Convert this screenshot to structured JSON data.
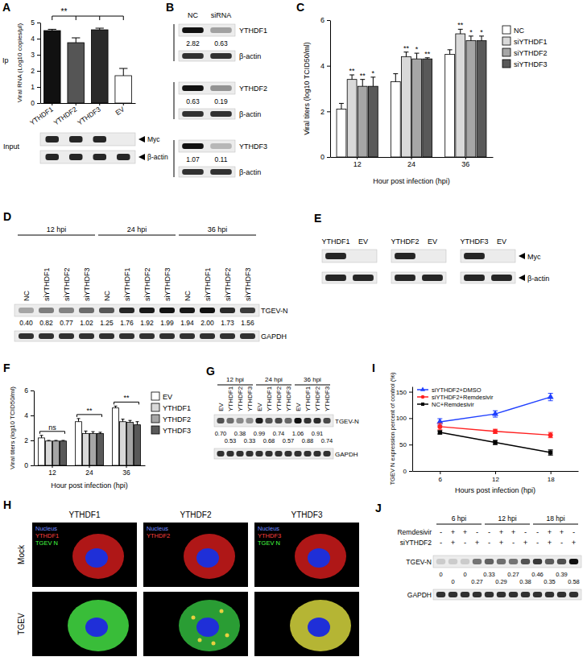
{
  "chart_data": [
    {
      "panel": "A",
      "type": "bar",
      "row_label": "Ip",
      "y_label": "Viral RNA (Log10 copies/μl)",
      "categories": [
        "YTHDF1",
        "YTHDF2",
        "YTHDF3",
        "EV"
      ],
      "values": [
        4.5,
        3.75,
        4.55,
        1.7
      ],
      "errors": [
        0.08,
        0.3,
        0.1,
        0.45
      ],
      "colors": [
        "#111111",
        "#555555",
        "#2a2a2a",
        "#ffffff"
      ],
      "ylim": [
        0,
        5
      ],
      "yticks": [
        0,
        1,
        2,
        3,
        4,
        5
      ],
      "annotations": [
        "**"
      ]
    },
    {
      "panel": "C",
      "type": "bar",
      "y_label": "Viral titers (log10 TCID50/ml)",
      "x_label": "Hour post infection (hpi)",
      "categories": [
        "12",
        "24",
        "36"
      ],
      "series": [
        {
          "name": "NC",
          "color": "#ffffff",
          "values": [
            2.1,
            3.3,
            4.5
          ],
          "errors": [
            0.25,
            0.35,
            0.2
          ]
        },
        {
          "name": "siYTHDF1",
          "color": "#d9d9d9",
          "values": [
            3.4,
            4.4,
            5.4
          ],
          "errors": [
            0.2,
            0.2,
            0.2
          ],
          "significance": [
            "**",
            "**",
            "**"
          ]
        },
        {
          "name": "siYTHDF2",
          "color": "#a6a6a6",
          "values": [
            3.1,
            4.3,
            5.1
          ],
          "errors": [
            0.3,
            0.25,
            0.2
          ],
          "significance": [
            "**",
            "*",
            "*"
          ]
        },
        {
          "name": "siYTHDF3",
          "color": "#595959",
          "values": [
            3.1,
            4.3,
            5.1
          ],
          "errors": [
            0.4,
            0.05,
            0.2
          ],
          "significance": [
            "*",
            "**",
            "*"
          ]
        }
      ],
      "ylim": [
        0,
        6
      ],
      "yticks": [
        0,
        2,
        4,
        6
      ],
      "legend": "right"
    },
    {
      "panel": "F",
      "type": "bar",
      "y_label": "Viral titers (log10 TCID50/ml)",
      "x_label": "Hour post infection (hpi)",
      "categories": [
        "12",
        "24",
        "36"
      ],
      "series": [
        {
          "name": "EV",
          "color": "#ffffff",
          "values": [
            2.2,
            3.5,
            4.6
          ],
          "errors": [
            0.2,
            0.25,
            0.15
          ]
        },
        {
          "name": "YTHDF1",
          "color": "#d9d9d9",
          "values": [
            1.95,
            2.55,
            3.5
          ],
          "errors": [
            0.05,
            0.2,
            0.2
          ]
        },
        {
          "name": "YTHDF2",
          "color": "#a6a6a6",
          "values": [
            1.95,
            2.55,
            3.45
          ],
          "errors": [
            0.05,
            0.15,
            0.15
          ]
        },
        {
          "name": "YTHDF3",
          "color": "#595959",
          "values": [
            1.95,
            2.55,
            3.25
          ],
          "errors": [
            0.05,
            0.1,
            0.25
          ]
        }
      ],
      "ylim": [
        0,
        6
      ],
      "yticks": [
        0,
        2,
        4,
        6
      ],
      "annotations": [
        "ns",
        "**",
        "**"
      ],
      "legend": "right"
    },
    {
      "panel": "I",
      "type": "line",
      "y_label": "TGEV N expression percent of control (%)",
      "x_label": "Hours post infection (hpi)",
      "x": [
        6,
        12,
        18
      ],
      "series": [
        {
          "name": "siYTHDF2+DMSO",
          "color": "#1f3fff",
          "marker": "triangle",
          "values": [
            93,
            108,
            140
          ],
          "errors": [
            6,
            6,
            7
          ]
        },
        {
          "name": "siYTHDF2+Remdesivir",
          "color": "#ff2020",
          "marker": "circle",
          "values": [
            84,
            75,
            68
          ],
          "errors": [
            6,
            4,
            5
          ]
        },
        {
          "name": "NC+Remdesivir",
          "color": "#000000",
          "marker": "square",
          "values": [
            73,
            54,
            35
          ],
          "errors": [
            3,
            4,
            5
          ]
        }
      ],
      "xlim": [
        3,
        21
      ],
      "xticks": [
        6,
        12,
        18
      ],
      "ylim": [
        0,
        160
      ],
      "yticks": [
        0,
        50,
        100,
        150
      ],
      "legend": "upper left"
    }
  ],
  "blots": {
    "A": {
      "label": "Input",
      "marker": "arrow",
      "rows": [
        {
          "name": "Myc",
          "bands": [
            true,
            true,
            true,
            false
          ]
        },
        {
          "name": "β-actin",
          "bands": [
            true,
            true,
            true,
            true
          ]
        }
      ]
    },
    "B": {
      "panel": "B",
      "lanes": [
        "NC",
        "siRNA"
      ],
      "pairs": [
        {
          "target": "YTHDF1",
          "values": [
            2.82,
            0.63
          ],
          "control": "β-actin"
        },
        {
          "target": "YTHDF2",
          "values": [
            0.63,
            0.19
          ],
          "control": "β-actin"
        },
        {
          "target": "YTHDF3",
          "values": [
            1.07,
            0.11
          ],
          "control": "β-actin"
        }
      ]
    },
    "D": {
      "panel": "D",
      "groups": [
        "12 hpi",
        "24 hpi",
        "36 hpi"
      ],
      "lanes": [
        "NC",
        "siYTHDF1",
        "siYTHDF2",
        "siYTHDF3",
        "NC",
        "siYTHDF1",
        "siYTHDF2",
        "siYTHDF3",
        "NC",
        "siYTHDF1",
        "siYTHDF2",
        "siYTHDF3"
      ],
      "target": "TGEV-N",
      "control": "GAPDH",
      "values": [
        0.4,
        0.82,
        0.77,
        1.02,
        1.25,
        1.76,
        1.92,
        1.99,
        1.94,
        2,
        1.73,
        1.56
      ],
      "value_labels": [
        "0.40",
        "0.82",
        "0.77",
        "1.02",
        "1.25",
        "1.76",
        "1.92",
        "1.99",
        "1.94",
        "2.00",
        "1.73",
        "1.56"
      ]
    },
    "E": {
      "panel": "E",
      "marker": "arrow",
      "rows": [
        "Myc",
        "β-actin"
      ],
      "blots": [
        {
          "lanes": [
            "YTHDF1",
            "EV"
          ],
          "bands": [
            true,
            false
          ]
        },
        {
          "lanes": [
            "YTHDF2",
            "EV"
          ],
          "bands": [
            true,
            false
          ]
        },
        {
          "lanes": [
            "YTHDF3",
            "EV"
          ],
          "bands": [
            true,
            false
          ]
        }
      ]
    },
    "G": {
      "panel": "G",
      "groups": [
        "12 hpi",
        "24 hpi",
        "36 hpi"
      ],
      "lanes": [
        "EV",
        "YTHDF1",
        "YTHDF2",
        "YTHDF3",
        "EV",
        "YTHDF1",
        "YTHDF2",
        "YTHDF3",
        "EV",
        "YTHDF1",
        "YTHDF2",
        "YTHDF3"
      ],
      "target": "TGEV-N",
      "control": "GAPDH",
      "values": [
        0.7,
        0.53,
        0.38,
        0.33,
        0.99,
        0.68,
        0.74,
        0.57,
        1.06,
        0.88,
        0.91,
        0.74
      ],
      "value_labels": [
        "0.70",
        "0.53",
        "0.38",
        "0.33",
        "0.99",
        "0.68",
        "0.74",
        "0.57",
        "1.06",
        "0.88",
        "0.91",
        "0.74"
      ]
    },
    "J": {
      "panel": "J",
      "groups": [
        "6 hpi",
        "12 hpi",
        "18 hpi"
      ],
      "conditions": [
        {
          "name": "Remdesivir",
          "signs": [
            "-",
            "+",
            "+",
            "-",
            "-",
            "+",
            "+",
            "-",
            "-",
            "+",
            "+",
            "-"
          ]
        },
        {
          "name": "siYTHDF2",
          "signs": [
            "-",
            "+",
            "-",
            "+",
            "-",
            "+",
            "-",
            "+",
            "-",
            "+",
            "-",
            "+"
          ]
        }
      ],
      "target": "TGEV-N",
      "control": "GAPDH",
      "values": [
        0,
        0,
        0,
        0.27,
        0.33,
        0.29,
        0.27,
        0.38,
        0.46,
        0.35,
        0.39,
        0.58
      ],
      "value_labels": [
        "0",
        "0",
        "0",
        "0.27",
        "0.33",
        "0.29",
        "0.27",
        "0.38",
        "0.46",
        "0.35",
        "0.39",
        "0.58"
      ]
    }
  },
  "images": {
    "panel": "H",
    "columns": [
      "YTHDF1",
      "YTHDF2",
      "YTHDF3"
    ],
    "rows": [
      "Mock",
      "TGEV"
    ],
    "overlay_labels": [
      [
        "Nucleus",
        "YTHDF1",
        "TGEV N"
      ],
      [
        "Nucleus",
        "YTHDF2"
      ],
      [
        "Nucleus",
        "YTHDF3",
        "TGEV N"
      ]
    ]
  }
}
